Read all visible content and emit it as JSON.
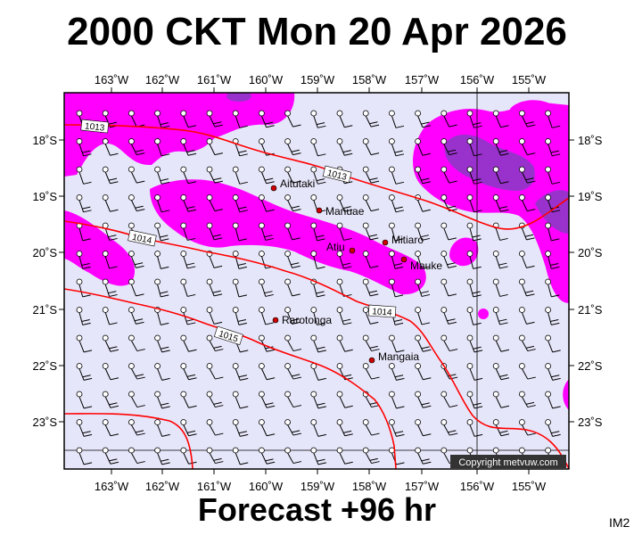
{
  "title": "2000 CKT Mon 20 Apr 2026",
  "footer": "Forecast +96 hr",
  "map_code": "IM2",
  "copyright": "Copyright metvuw.com",
  "colors": {
    "background": "#e6e6fa",
    "precip_light": "#ff00ff",
    "precip_heavy": "#9932cc",
    "isobar": "#ff0000",
    "island": "#cc0000"
  },
  "longitude_labels": [
    "163˚W",
    "162˚W",
    "161˚W",
    "160˚W",
    "159˚W",
    "158˚W",
    "157˚W",
    "156˚W",
    "155˚W"
  ],
  "latitude_labels": [
    "18˚S",
    "19˚S",
    "20˚S",
    "21˚S",
    "22˚S",
    "23˚S"
  ],
  "isobar_labels": [
    "1013",
    "1013",
    "1014",
    "1014",
    "1015"
  ],
  "places": [
    {
      "name": "Aitutaki"
    },
    {
      "name": "Manuae"
    },
    {
      "name": "Mitiaro"
    },
    {
      "name": "Atiu"
    },
    {
      "name": "Mauke"
    },
    {
      "name": "Rarotonga"
    },
    {
      "name": "Mangaia"
    }
  ]
}
